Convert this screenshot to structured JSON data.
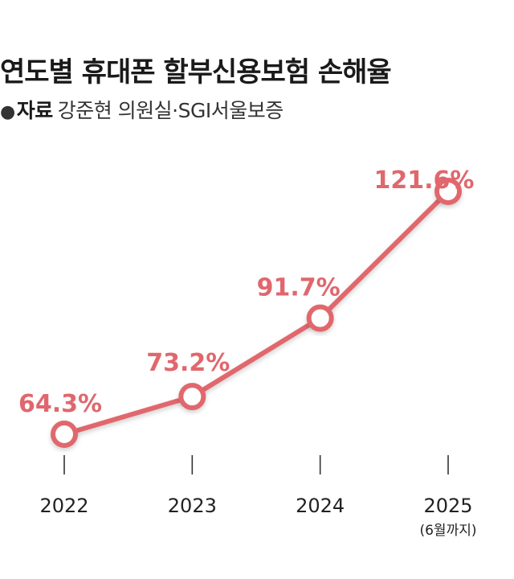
{
  "title": "연도별 휴대폰 할부신용보험 손해율",
  "source": {
    "label": "자료",
    "text": "강준현 의원실·SGI서울보증"
  },
  "colors": {
    "line": "#e0676d",
    "marker_fill": "#ffffff",
    "text": "#222222"
  },
  "chart_data": {
    "type": "line",
    "categories": [
      "2022",
      "2023",
      "2024",
      "2025"
    ],
    "category_notes": [
      "",
      "",
      "",
      "(6월까지)"
    ],
    "values": [
      64.3,
      73.2,
      91.7,
      121.6
    ],
    "value_labels": [
      "64.3%",
      "73.2%",
      "91.7%",
      "121.6%"
    ],
    "unit": "%",
    "ylim": [
      55,
      130
    ],
    "grid": false,
    "legend": "none"
  }
}
